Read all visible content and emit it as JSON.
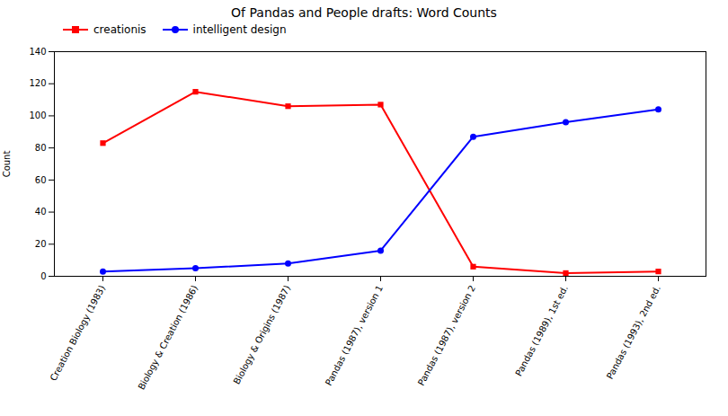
{
  "chart_data": {
    "type": "line",
    "title": "Of Pandas and People drafts: Word Counts",
    "ylabel": "Count",
    "categories": [
      "Creation Biology (1983)",
      "Biology & Creation (1986)",
      "Biology & Origins (1987)",
      "Pandas (1987), version 1",
      "Pandas (1987), version 2",
      "Pandas (1989), 1st ed.",
      "Pandas (1993), 2nd ed."
    ],
    "series": [
      {
        "name": "creationis",
        "color": "#FF0000",
        "marker": "square",
        "values": [
          83,
          115,
          106,
          107,
          6,
          2,
          3
        ]
      },
      {
        "name": "intelligent design",
        "color": "#0000FF",
        "marker": "circle",
        "values": [
          3,
          5,
          8,
          16,
          87,
          96,
          104
        ]
      }
    ],
    "ylim": [
      0,
      140
    ],
    "yticks": [
      0,
      20,
      40,
      60,
      80,
      100,
      120,
      140
    ],
    "legend": "upper left",
    "grid": false
  }
}
